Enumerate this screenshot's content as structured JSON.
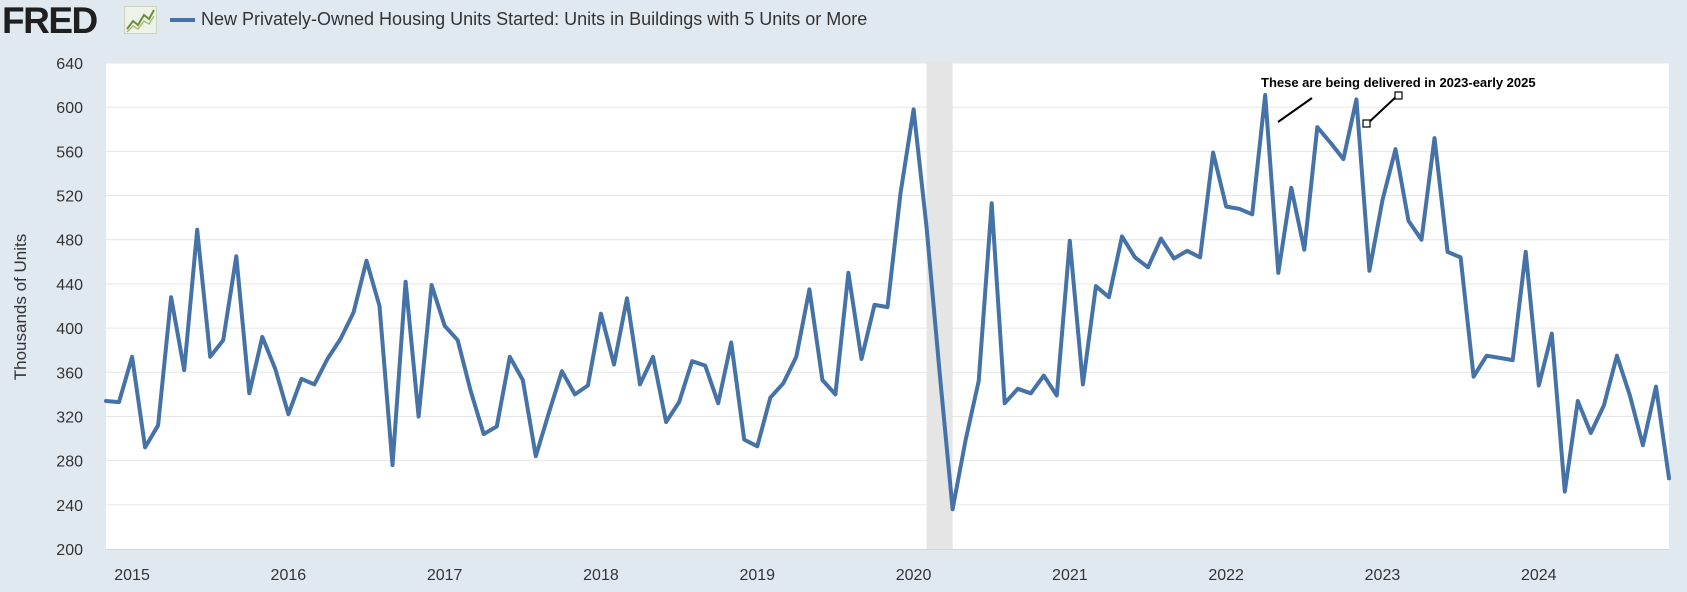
{
  "header": {
    "logo_text": "FRED",
    "logo_icon": "line-chart-icon",
    "legend_label": "New Privately-Owned Housing Units Started: Units in Buildings with 5 Units or More"
  },
  "colors": {
    "background": "#e1e9f0",
    "plot_background": "#ffffff",
    "series": "#4572a7",
    "gridline": "#e6e6e6",
    "recession": "#e5e5e5"
  },
  "chart_data": {
    "type": "line",
    "title": "",
    "xlabel": "",
    "ylabel": "Thousands of Units",
    "ylim": [
      200,
      640
    ],
    "y_ticks": [
      200,
      240,
      280,
      320,
      360,
      400,
      440,
      480,
      520,
      560,
      600,
      640
    ],
    "x_ticks": [
      "2015",
      "2016",
      "2017",
      "2018",
      "2019",
      "2020",
      "2021",
      "2022",
      "2023",
      "2024"
    ],
    "x_range": [
      "2014-11",
      "2024-11"
    ],
    "grid": true,
    "recession_shading": [
      {
        "start": "2020-02",
        "end": "2020-04"
      }
    ],
    "series": [
      {
        "name": "New Privately-Owned Housing Units Started: Units in Buildings with 5 Units or More",
        "x": [
          "2014-11",
          "2014-12",
          "2015-01",
          "2015-02",
          "2015-03",
          "2015-04",
          "2015-05",
          "2015-06",
          "2015-07",
          "2015-08",
          "2015-09",
          "2015-10",
          "2015-11",
          "2015-12",
          "2016-01",
          "2016-02",
          "2016-03",
          "2016-04",
          "2016-05",
          "2016-06",
          "2016-07",
          "2016-08",
          "2016-09",
          "2016-10",
          "2016-11",
          "2016-12",
          "2017-01",
          "2017-02",
          "2017-03",
          "2017-04",
          "2017-05",
          "2017-06",
          "2017-07",
          "2017-08",
          "2017-09",
          "2017-10",
          "2017-11",
          "2017-12",
          "2018-01",
          "2018-02",
          "2018-03",
          "2018-04",
          "2018-05",
          "2018-06",
          "2018-07",
          "2018-08",
          "2018-09",
          "2018-10",
          "2018-11",
          "2018-12",
          "2019-01",
          "2019-02",
          "2019-03",
          "2019-04",
          "2019-05",
          "2019-06",
          "2019-07",
          "2019-08",
          "2019-09",
          "2019-10",
          "2019-11",
          "2019-12",
          "2020-01",
          "2020-02",
          "2020-03",
          "2020-04",
          "2020-05",
          "2020-06",
          "2020-07",
          "2020-08",
          "2020-09",
          "2020-10",
          "2020-11",
          "2020-12",
          "2021-01",
          "2021-02",
          "2021-03",
          "2021-04",
          "2021-05",
          "2021-06",
          "2021-07",
          "2021-08",
          "2021-09",
          "2021-10",
          "2021-11",
          "2021-12",
          "2022-01",
          "2022-02",
          "2022-03",
          "2022-04",
          "2022-05",
          "2022-06",
          "2022-07",
          "2022-08",
          "2022-09",
          "2022-10",
          "2022-11",
          "2022-12",
          "2023-01",
          "2023-02",
          "2023-03",
          "2023-04",
          "2023-05",
          "2023-06",
          "2023-07",
          "2023-08",
          "2023-09",
          "2023-10",
          "2023-11",
          "2023-12",
          "2024-01",
          "2024-02",
          "2024-03",
          "2024-04",
          "2024-05",
          "2024-06",
          "2024-07",
          "2024-08",
          "2024-09",
          "2024-10",
          "2024-11"
        ],
        "values": [
          334,
          333,
          374,
          292,
          312,
          428,
          362,
          489,
          374,
          389,
          465,
          341,
          392,
          363,
          322,
          354,
          349,
          372,
          390,
          414,
          461,
          420,
          276,
          442,
          320,
          439,
          402,
          389,
          343,
          304,
          311,
          374,
          353,
          284,
          323,
          361,
          340,
          348,
          413,
          367,
          427,
          349,
          374,
          315,
          333,
          370,
          366,
          332,
          387,
          299,
          293,
          337,
          350,
          374,
          435,
          353,
          340,
          450,
          372,
          421,
          419,
          522,
          598,
          491,
          360,
          236,
          299,
          352,
          513,
          332,
          345,
          341,
          357,
          339,
          479,
          349,
          438,
          428,
          483,
          464,
          455,
          481,
          463,
          470,
          464,
          559,
          510,
          508,
          503,
          611,
          450,
          527,
          471,
          582,
          568,
          553,
          607,
          452,
          516,
          562,
          497,
          480,
          572,
          469,
          464,
          356,
          375,
          373,
          371,
          469,
          348,
          395,
          252,
          334,
          305,
          330,
          375,
          339,
          294,
          347,
          264
        ]
      }
    ],
    "annotations": [
      {
        "text": "These are being delivered in 2023-early 2025"
      }
    ]
  }
}
